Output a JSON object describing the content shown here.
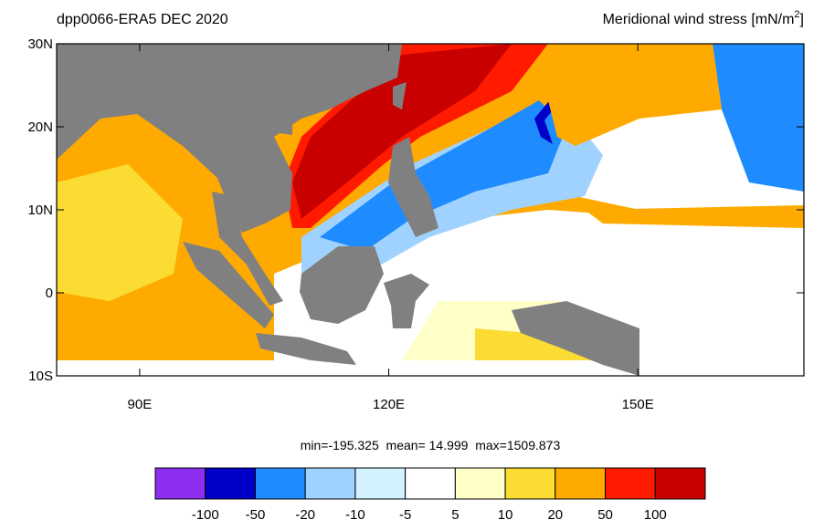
{
  "header": {
    "title_left": "dpp0066-ERA5  DEC 2020",
    "title_right": {
      "text": "Meridional wind stress [mN/m",
      "superscript": "2",
      "closing": "]"
    }
  },
  "map": {
    "lonlim": [
      80,
      170
    ],
    "latlim": [
      -10,
      30
    ],
    "lat_ticks": [
      {
        "value": 30,
        "label": "30N"
      },
      {
        "value": 20,
        "label": "20N"
      },
      {
        "value": 10,
        "label": "10N"
      },
      0,
      {
        "value": -10,
        "label": "10S"
      }
    ],
    "lon_ticks": [
      {
        "value": 90,
        "label": "90E"
      },
      {
        "value": 120,
        "label": "120E"
      },
      {
        "value": 150,
        "label": "150E"
      }
    ],
    "land_color": "#808080"
  },
  "stats": "min=-195.325  mean= 14.999  max=1509.873",
  "colorbar": {
    "colors": [
      "#8c2ff0",
      "#0000c8",
      "#1e8cff",
      "#a0d2ff",
      "#d2f2ff",
      "#ffffff",
      "#ffffc8",
      "#fadc32",
      "#ffaa00",
      "#ff1a00",
      "#c80000"
    ],
    "levels": [
      -100,
      -50,
      -20,
      -10,
      -5,
      5,
      10,
      20,
      50,
      100
    ]
  }
}
